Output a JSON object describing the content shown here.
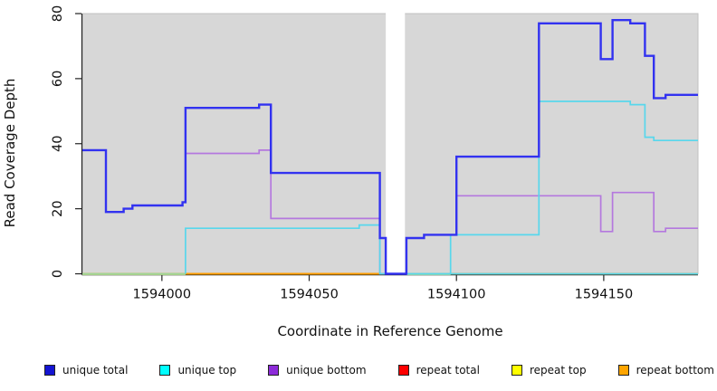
{
  "axes": {
    "x_label": "Coordinate in Reference Genome",
    "y_label": "Read Coverage Depth"
  },
  "chart_data": {
    "type": "line",
    "subtype": "step-coverage-plot",
    "title": "",
    "xlabel": "Coordinate in Reference Genome",
    "ylabel": "Read Coverage Depth",
    "x_range": [
      1593973,
      1594182
    ],
    "y_range": [
      0,
      80
    ],
    "x_ticks": [
      1594000,
      1594050,
      1594100,
      1594150
    ],
    "y_ticks": [
      0,
      20,
      40,
      60,
      80
    ],
    "grid": false,
    "plot_bg": "#d7d7d7",
    "plot_border": "#c2c2c2",
    "axis_color": "#222222",
    "no_data_gap": {
      "from": 1594076,
      "to": 1594082.5,
      "color": "#ffffff"
    },
    "baseline_overlays": [
      {
        "from": 1593973,
        "to": 1594008,
        "value": 0,
        "color": "#9dd69b"
      },
      {
        "from": 1594083,
        "to": 1594098,
        "value": 0,
        "color": "#9dd69b"
      }
    ],
    "series": [
      {
        "name": "repeat bottom",
        "color": "#ff9d00",
        "width": 2.0,
        "segments": [
          [
            [
              1593973,
              0
            ],
            [
              1594182,
              0
            ]
          ]
        ]
      },
      {
        "name": "unique bottom",
        "color": "#b478de",
        "width": 1.7,
        "segments": [
          [
            [
              1593973,
              38
            ],
            [
              1593981,
              19
            ],
            [
              1593987,
              20
            ],
            [
              1593990,
              21
            ],
            [
              1594007,
              22
            ],
            [
              1594008,
              37
            ],
            [
              1594033,
              38
            ],
            [
              1594037,
              17
            ],
            [
              1594074,
              0
            ],
            [
              1594083,
              11
            ],
            [
              1594089,
              12
            ],
            [
              1594100,
              24
            ],
            [
              1594149,
              13
            ],
            [
              1594153,
              25
            ],
            [
              1594167,
              13
            ],
            [
              1594171,
              14
            ]
          ]
        ]
      },
      {
        "name": "unique top",
        "color": "#58d7ec",
        "width": 1.7,
        "segments": [
          [
            [
              1594008,
              0
            ],
            [
              1594008,
              14
            ],
            [
              1594067,
              15
            ],
            [
              1594074,
              0
            ]
          ],
          [
            [
              1594098,
              0
            ],
            [
              1594098,
              12
            ],
            [
              1594128,
              53
            ],
            [
              1594159,
              52
            ],
            [
              1594164,
              42
            ],
            [
              1594167,
              41
            ]
          ]
        ]
      },
      {
        "name": "unique total",
        "color": "#3232f0",
        "width": 2.4,
        "segments": [
          [
            [
              1593973,
              38
            ],
            [
              1593981,
              19
            ],
            [
              1593987,
              20
            ],
            [
              1593990,
              21
            ],
            [
              1594007,
              22
            ],
            [
              1594008,
              51
            ],
            [
              1594033,
              52
            ],
            [
              1594037,
              31
            ],
            [
              1594074,
              11
            ],
            [
              1594076,
              0
            ],
            [
              1594083,
              11
            ],
            [
              1594089,
              12
            ],
            [
              1594100,
              36
            ],
            [
              1594128,
              77
            ],
            [
              1594149,
              66
            ],
            [
              1594153,
              78
            ],
            [
              1594159,
              77
            ],
            [
              1594164,
              67
            ],
            [
              1594167,
              54
            ],
            [
              1594171,
              55
            ]
          ]
        ]
      },
      {
        "name": "repeat total",
        "color": "#ee0000",
        "width": 1.5,
        "segments": [
          [
            [
              1593973,
              0
            ],
            [
              1594182,
              0
            ]
          ]
        ],
        "note": "hidden at 0 under repeat bottom"
      },
      {
        "name": "repeat top",
        "color": "#ffff00",
        "width": 1.5,
        "segments": [
          [
            [
              1593973,
              0
            ],
            [
              1594182,
              0
            ]
          ]
        ],
        "note": "hidden at 0 under repeat bottom"
      }
    ],
    "legend_position": "bottom"
  },
  "legend": {
    "items": [
      {
        "label": "unique total",
        "swatch": "#1414d2"
      },
      {
        "label": "unique top",
        "swatch": "#00ffff"
      },
      {
        "label": "unique bottom",
        "swatch": "#8d2bd9"
      },
      {
        "label": "repeat total",
        "swatch": "#ff0000"
      },
      {
        "label": "repeat top",
        "swatch": "#ffff00"
      },
      {
        "label": "repeat bottom",
        "swatch": "#ffa500"
      }
    ]
  }
}
